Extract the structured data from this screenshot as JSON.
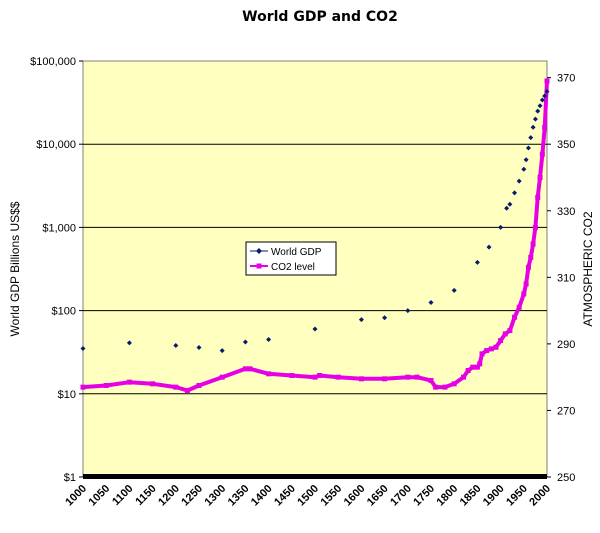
{
  "chart_data": {
    "type": "line",
    "title": "World GDP and CO2",
    "xlabel": "",
    "ylabel_left": "World GDP Billions US$$",
    "ylabel_right": "ATMOSPHERIC CO2",
    "x_range": [
      1000,
      2000
    ],
    "x_ticks": [
      "1000",
      "1050",
      "1100",
      "1150",
      "1200",
      "1250",
      "1300",
      "1350",
      "1400",
      "1450",
      "1500",
      "1550",
      "1600",
      "1650",
      "1700",
      "1750",
      "1800",
      "1850",
      "1900",
      "1950",
      "2000"
    ],
    "y_left_scale": "log",
    "y_left_range": [
      1,
      100000
    ],
    "y_left_ticks": [
      {
        "value": 1,
        "label": "$1"
      },
      {
        "value": 10,
        "label": "$10"
      },
      {
        "value": 100,
        "label": "$100"
      },
      {
        "value": 1000,
        "label": "$1,000"
      },
      {
        "value": 10000,
        "label": "$10,000"
      },
      {
        "value": 100000,
        "label": "$100,000"
      }
    ],
    "y_right_range": [
      250,
      375
    ],
    "y_right_ticks": [
      {
        "value": 250,
        "label": "250"
      },
      {
        "value": 270,
        "label": "270"
      },
      {
        "value": 290,
        "label": "290"
      },
      {
        "value": 310,
        "label": "310"
      },
      {
        "value": 330,
        "label": "330"
      },
      {
        "value": 350,
        "label": "350"
      },
      {
        "value": 370,
        "label": "370"
      }
    ],
    "grid": true,
    "legend_position": "center",
    "series": [
      {
        "name": "World GDP",
        "axis": "left",
        "color": "#0a1a6e",
        "style": "markers",
        "x": [
          1000,
          1100,
          1200,
          1250,
          1300,
          1350,
          1400,
          1500,
          1600,
          1650,
          1700,
          1750,
          1800,
          1850,
          1875,
          1900,
          1913,
          1920,
          1930,
          1940,
          1950,
          1955,
          1960,
          1965,
          1970,
          1975,
          1980,
          1985,
          1990,
          1995,
          2000
        ],
        "values": [
          35,
          41,
          38,
          36,
          33,
          42,
          45,
          60,
          78,
          82,
          100,
          125,
          175,
          380,
          580,
          1000,
          1700,
          1900,
          2600,
          3600,
          5000,
          6500,
          9000,
          12000,
          16000,
          20000,
          25000,
          29000,
          34000,
          38000,
          43000
        ]
      },
      {
        "name": "CO2 level",
        "axis": "right",
        "color": "#e600e6",
        "style": "line-markers",
        "x": [
          1000,
          1050,
          1100,
          1150,
          1200,
          1225,
          1250,
          1300,
          1350,
          1360,
          1400,
          1450,
          1500,
          1510,
          1550,
          1600,
          1650,
          1700,
          1720,
          1750,
          1760,
          1780,
          1800,
          1820,
          1830,
          1840,
          1850,
          1855,
          1860,
          1870,
          1880,
          1890,
          1900,
          1910,
          1920,
          1930,
          1940,
          1950,
          1955,
          1960,
          1965,
          1970,
          1975,
          1980,
          1985,
          1990,
          1995,
          2000
        ],
        "values": [
          277,
          277.5,
          278.5,
          278,
          277,
          276,
          277.5,
          280,
          282.5,
          282.5,
          281,
          280.5,
          280,
          280.5,
          280,
          279.5,
          279.5,
          280,
          280,
          279,
          277,
          277,
          278,
          280,
          282,
          283,
          283,
          284,
          287,
          288,
          288.5,
          289,
          291,
          293,
          294,
          298,
          301,
          305,
          308,
          313,
          316,
          320,
          325,
          334,
          340,
          347,
          355,
          369
        ]
      }
    ]
  }
}
